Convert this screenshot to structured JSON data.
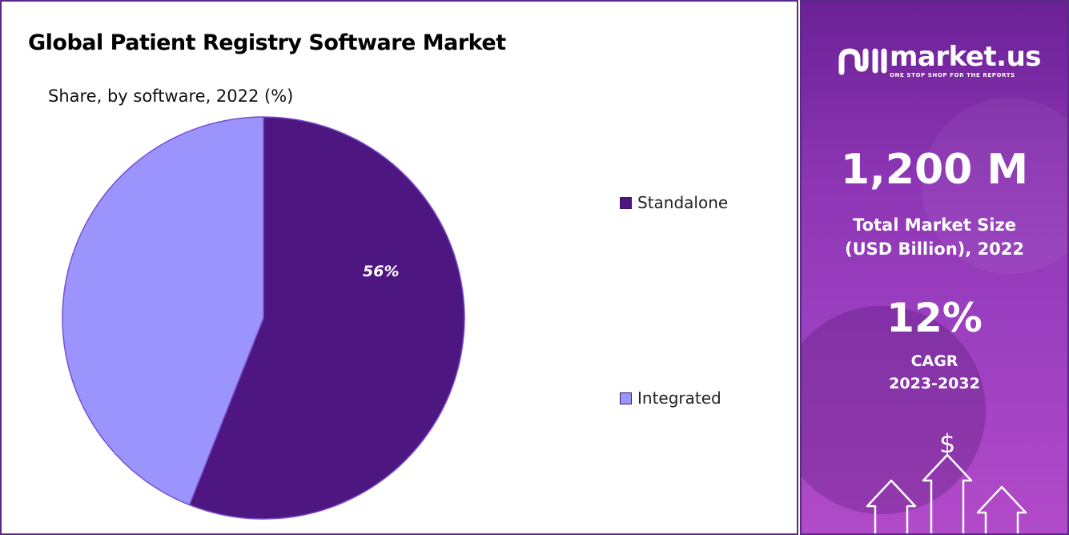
{
  "chart_data": {
    "type": "pie",
    "title": "Global Patient Registry Software Market",
    "subtitle": "Share, by software, 2022 (%)",
    "categories": [
      "Standalone",
      "Integrated"
    ],
    "values": [
      56,
      44
    ],
    "data_labels": [
      "56%",
      ""
    ],
    "colors": [
      "#4e1680",
      "#9a94fc"
    ],
    "legend_placement": "right"
  },
  "sidebar": {
    "brand": "market.us",
    "tagline": "ONE STOP SHOP FOR THE REPORTS",
    "market_size_value": "1,200 M",
    "market_size_label_line1": "Total Market Size",
    "market_size_label_line2": "(USD Billion), 2022",
    "cagr_value": "12%",
    "cagr_label": "CAGR",
    "cagr_period": "2023-2032",
    "icons": [
      "market-us-logo-icon",
      "dollar-icon",
      "up-arrows-icon"
    ]
  }
}
